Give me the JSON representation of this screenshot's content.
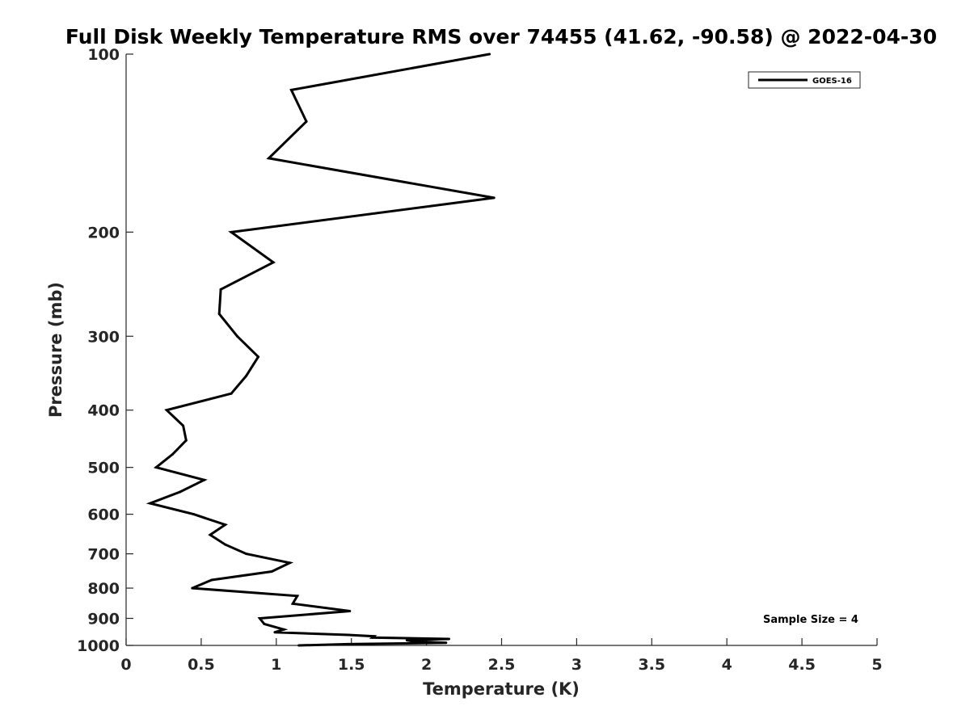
{
  "chart_data": {
    "type": "line",
    "title": "Full Disk Weekly Temperature RMS over 74455 (41.62, -90.58) @ 2022-04-30",
    "xlabel": "Temperature (K)",
    "ylabel": "Pressure (mb)",
    "xlim": [
      0,
      5
    ],
    "ylim": [
      100,
      1000
    ],
    "y_scale": "log",
    "y_direction": "reversed",
    "xticks": [
      "0",
      "0.5",
      "1",
      "1.5",
      "2",
      "2.5",
      "3",
      "3.5",
      "4",
      "4.5",
      "5"
    ],
    "yticks": [
      "100",
      "200",
      "300",
      "400",
      "500",
      "600",
      "700",
      "800",
      "900",
      "1000"
    ],
    "legend": {
      "position": "top-right",
      "entries": [
        "GOES-16"
      ]
    },
    "annotation": "Sample Size = 4",
    "grid": false,
    "series": [
      {
        "name": "GOES-16",
        "color": "#000000",
        "x": [
          2.42,
          1.1,
          1.2,
          0.95,
          2.45,
          0.7,
          0.98,
          0.63,
          0.62,
          0.74,
          0.88,
          0.8,
          0.7,
          0.27,
          0.38,
          0.4,
          0.31,
          0.2,
          0.52,
          0.36,
          0.16,
          0.45,
          0.66,
          0.56,
          0.66,
          0.8,
          1.09,
          0.97,
          0.57,
          0.44,
          1.14,
          1.11,
          1.49,
          0.89,
          0.92,
          1.05,
          0.99,
          1.48,
          1.65,
          1.64,
          2.15,
          1.87,
          1.92,
          2.13,
          1.48,
          1.15
        ],
        "y": [
          100,
          115,
          130,
          150,
          175,
          200,
          225,
          250,
          275,
          300,
          325,
          350,
          375,
          400,
          425,
          450,
          475,
          500,
          525,
          550,
          575,
          600,
          625,
          650,
          675,
          700,
          725,
          750,
          775,
          800,
          825,
          850,
          875,
          900,
          920,
          940,
          950,
          960,
          965,
          970,
          975,
          980,
          985,
          990,
          995,
          1000
        ]
      }
    ]
  }
}
